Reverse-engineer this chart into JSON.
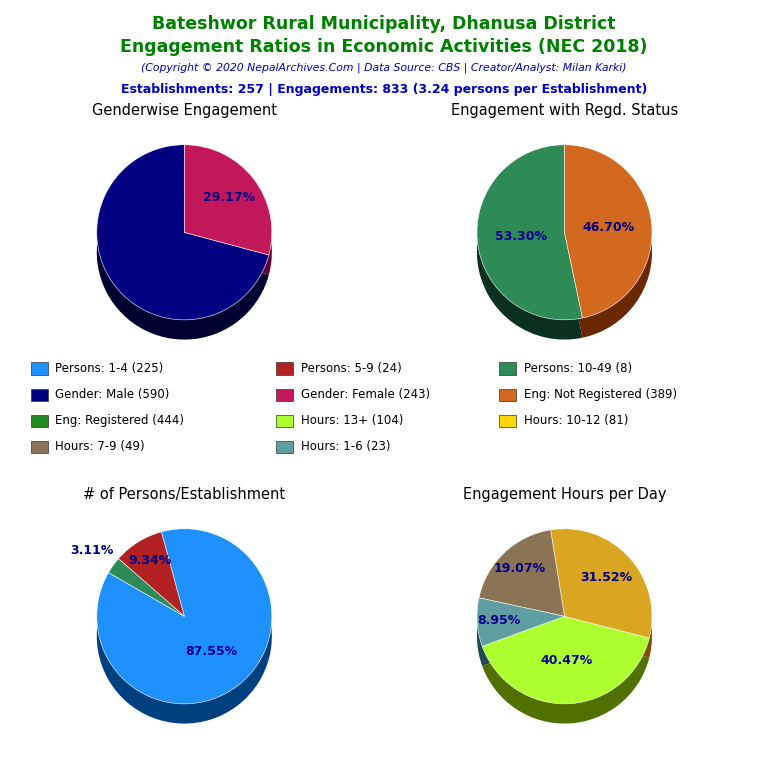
{
  "title_line1": "Bateshwor Rural Municipality, Dhanusa District",
  "title_line2": "Engagement Ratios in Economic Activities (NEC 2018)",
  "subtitle": "(Copyright © 2020 NepalArchives.Com | Data Source: CBS | Creator/Analyst: Milan Karki)",
  "info_line": "Establishments: 257 | Engagements: 833 (3.24 persons per Establishment)",
  "title_color": "#008000",
  "subtitle_color": "#0000CD",
  "info_color": "#0000CD",
  "bg_color": "#ffffff",
  "pie1_title": "Genderwise Engagement",
  "pie1_values": [
    70.83,
    29.17
  ],
  "pie1_colors": [
    "#000080",
    "#C2185B"
  ],
  "pie1_shadow_colors": [
    "#000030",
    "#600030"
  ],
  "pie1_labels": [
    "70.83%",
    "29.17%"
  ],
  "pie1_startangle": 90,
  "pie2_title": "Engagement with Regd. Status",
  "pie2_values": [
    53.3,
    46.7
  ],
  "pie2_colors": [
    "#2E8B57",
    "#D2691E"
  ],
  "pie2_shadow_colors": [
    "#0a3020",
    "#6b2800"
  ],
  "pie2_labels": [
    "53.30%",
    "46.70%"
  ],
  "pie2_startangle": 90,
  "pie3_title": "# of Persons/Establishment",
  "pie3_values": [
    87.55,
    9.34,
    3.11
  ],
  "pie3_colors": [
    "#1E90FF",
    "#B22222",
    "#2E8B57"
  ],
  "pie3_shadow_colors": [
    "#004080",
    "#500000",
    "#0a3020"
  ],
  "pie3_labels": [
    "87.55%",
    "9.34%",
    "3.11%"
  ],
  "pie3_startangle": 150,
  "pie4_title": "Engagement Hours per Day",
  "pie4_values": [
    40.47,
    31.52,
    19.07,
    8.95
  ],
  "pie4_colors": [
    "#ADFF2F",
    "#DAA520",
    "#8B7355",
    "#5F9EA0"
  ],
  "pie4_shadow_colors": [
    "#507000",
    "#805000",
    "#3a2a10",
    "#204a50"
  ],
  "pie4_labels": [
    "40.47%",
    "31.52%",
    "19.07%",
    "8.95%"
  ],
  "pie4_startangle": 200,
  "legend_items": [
    {
      "label": "Persons: 1-4 (225)",
      "color": "#1E90FF"
    },
    {
      "label": "Persons: 5-9 (24)",
      "color": "#B22222"
    },
    {
      "label": "Persons: 10-49 (8)",
      "color": "#2E8B57"
    },
    {
      "label": "Gender: Male (590)",
      "color": "#000080"
    },
    {
      "label": "Gender: Female (243)",
      "color": "#C2185B"
    },
    {
      "label": "Eng: Not Registered (389)",
      "color": "#D2691E"
    },
    {
      "label": "Eng: Registered (444)",
      "color": "#228B22"
    },
    {
      "label": "Hours: 13+ (104)",
      "color": "#ADFF2F"
    },
    {
      "label": "Hours: 10-12 (81)",
      "color": "#FFD700"
    },
    {
      "label": "Hours: 7-9 (49)",
      "color": "#8B7355"
    },
    {
      "label": "Hours: 1-6 (23)",
      "color": "#5F9EA0"
    }
  ],
  "pct_color": "#00008B",
  "label_fontsize": 9,
  "pct_fontsize": 9
}
